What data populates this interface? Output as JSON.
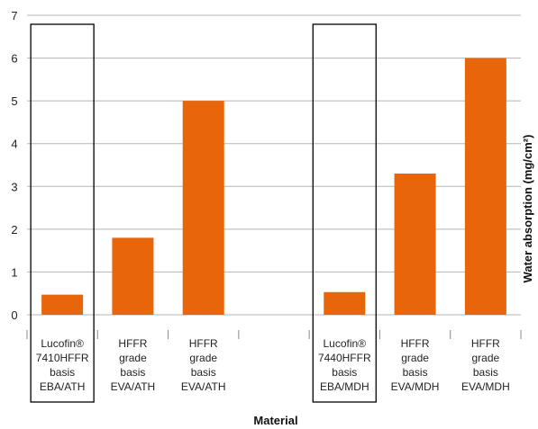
{
  "chart_data": {
    "type": "bar",
    "xlabel": "Material",
    "ylabel": "Water absorption (mg/cm²)",
    "ylim": [
      0,
      7
    ],
    "yticks": [
      0,
      1,
      2,
      3,
      4,
      5,
      6,
      7
    ],
    "grid": true,
    "bar_color": "#e8650a",
    "highlight_box_color": "#000000",
    "categories": [
      {
        "label": [
          "Lucofin®",
          "7410HFFR",
          "basis",
          "EBA/ATH"
        ],
        "value": 0.47,
        "highlighted": true
      },
      {
        "label": [
          "HFFR",
          "grade",
          "basis",
          "EVA/ATH"
        ],
        "value": 1.8,
        "highlighted": false
      },
      {
        "label": [
          "HFFR",
          "grade",
          "basis",
          "EVA/ATH"
        ],
        "value": 5.0,
        "highlighted": false
      },
      {
        "label": [
          "",
          "",
          "",
          ""
        ],
        "value": null,
        "highlighted": false
      },
      {
        "label": [
          "Lucofin®",
          "7440HFFR",
          "basis",
          "EBA/MDH"
        ],
        "value": 0.53,
        "highlighted": true
      },
      {
        "label": [
          "HFFR",
          "grade",
          "basis",
          "EVA/MDH"
        ],
        "value": 3.3,
        "highlighted": false
      },
      {
        "label": [
          "HFFR",
          "grade",
          "basis",
          "EVA/MDH"
        ],
        "value": 6.0,
        "highlighted": false
      }
    ]
  }
}
